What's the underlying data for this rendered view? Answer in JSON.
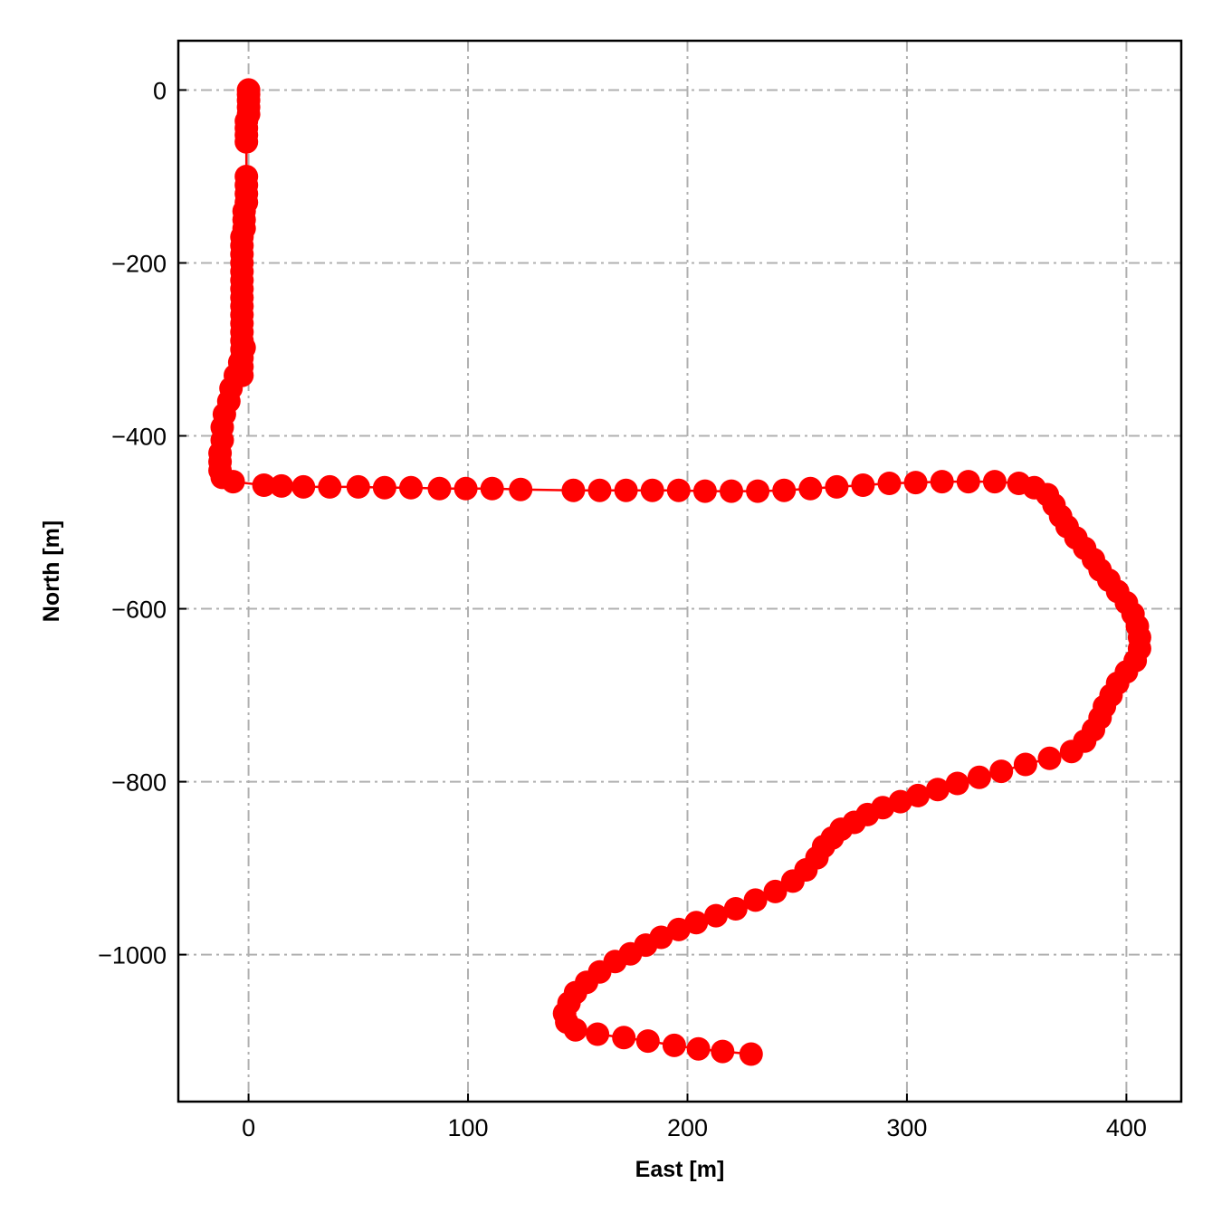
{
  "chart_data": {
    "type": "scatter",
    "title": "",
    "xlabel": "East [m]",
    "ylabel": "North [m]",
    "xlim": [
      -32,
      425
    ],
    "ylim": [
      -1170,
      57
    ],
    "xticks": [
      0,
      100,
      200,
      300,
      400
    ],
    "yticks": [
      0,
      -200,
      -400,
      -600,
      -800,
      -1000
    ],
    "xtick_labels": [
      "0",
      "100",
      "200",
      "300",
      "400"
    ],
    "ytick_labels": [
      "0",
      "−200",
      "−400",
      "−600",
      "−800",
      "−1000"
    ],
    "grid": true,
    "color": "#ff0000",
    "series": [
      {
        "style": "line+markers",
        "x": [
          0,
          0,
          0,
          0,
          0,
          -1,
          -1,
          -1,
          -1,
          -1,
          -1,
          -1,
          -1,
          -2,
          -2,
          -2,
          -3,
          -3,
          -3,
          -3,
          -3,
          -3,
          -3,
          -3,
          -3,
          -3,
          -3,
          -3,
          -3,
          -3,
          -3,
          -3,
          -3,
          -2,
          -4,
          -6,
          -8,
          -9,
          -11,
          -12,
          -12,
          -13,
          -13,
          -13,
          -12,
          -7,
          7,
          15,
          25,
          37,
          50,
          62,
          74,
          87,
          99,
          111,
          124,
          148,
          160,
          172,
          184,
          196,
          208,
          220,
          232,
          244,
          256,
          268,
          280,
          292,
          304,
          316,
          328,
          340,
          351,
          358,
          364,
          367,
          370,
          373,
          377,
          381,
          385,
          388,
          392,
          396,
          400,
          403,
          405,
          406,
          406,
          404,
          400,
          396,
          393,
          390,
          388,
          385,
          381,
          375,
          365,
          354,
          343,
          333,
          323,
          314,
          305,
          297,
          289,
          282,
          276,
          270,
          266,
          262,
          259,
          254,
          248,
          240,
          231,
          222,
          213,
          204,
          196,
          188,
          181,
          174,
          167,
          160,
          154,
          149,
          146,
          144,
          145,
          149,
          159,
          171,
          182,
          194,
          205,
          216,
          229
        ],
        "y": [
          0,
          -5,
          -12,
          -20,
          -28,
          -36,
          -44,
          -52,
          -60,
          -100,
          -110,
          -120,
          -130,
          -140,
          -150,
          -160,
          -170,
          -180,
          -190,
          -200,
          -210,
          -220,
          -230,
          -240,
          -250,
          -260,
          -270,
          -280,
          -290,
          -300,
          -310,
          -320,
          -330,
          -298,
          -315,
          -330,
          -345,
          -360,
          -375,
          -390,
          -405,
          -420,
          -430,
          -440,
          -448,
          -453,
          -457,
          -458,
          -459,
          -459,
          -459,
          -460,
          -460,
          -461,
          -461,
          -461,
          -462,
          -463,
          -463,
          -463,
          -463,
          -463,
          -464,
          -464,
          -464,
          -463,
          -461,
          -459,
          -457,
          -455,
          -454,
          -453,
          -453,
          -453,
          -455,
          -460,
          -468,
          -480,
          -493,
          -505,
          -518,
          -530,
          -543,
          -555,
          -567,
          -580,
          -593,
          -606,
          -620,
          -633,
          -646,
          -660,
          -673,
          -686,
          -700,
          -713,
          -726,
          -740,
          -753,
          -765,
          -773,
          -780,
          -788,
          -795,
          -802,
          -809,
          -816,
          -823,
          -830,
          -838,
          -847,
          -855,
          -865,
          -875,
          -888,
          -902,
          -915,
          -927,
          -937,
          -947,
          -955,
          -963,
          -971,
          -980,
          -989,
          -999,
          -1008,
          -1020,
          -1032,
          -1044,
          -1056,
          -1068,
          -1078,
          -1087,
          -1092,
          -1096,
          -1100,
          -1105,
          -1109,
          -1112,
          -1115
        ]
      }
    ]
  }
}
